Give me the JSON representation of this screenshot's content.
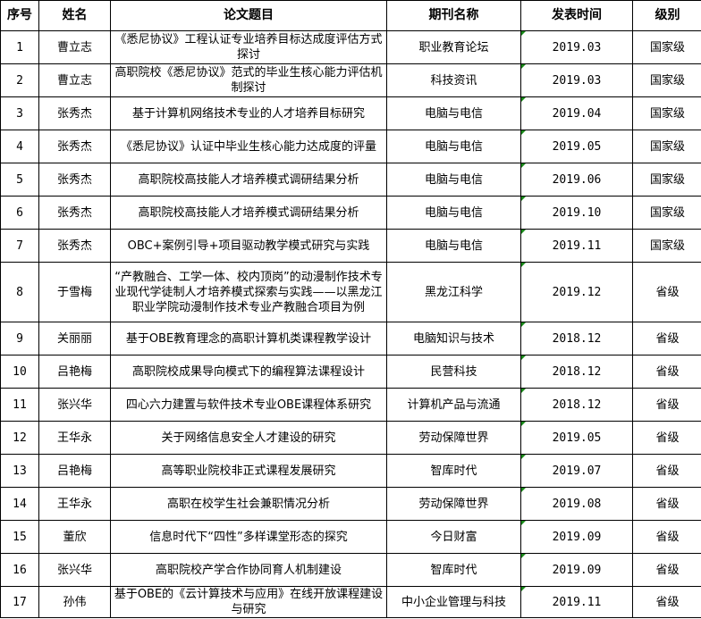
{
  "headers": [
    "序号",
    "姓名",
    "论文题目",
    "期刊名称",
    "发表时间",
    "级别"
  ],
  "rows": [
    {
      "no": "1",
      "name": "曹立志",
      "title": "《悉尼协议》工程认证专业培养目标达成度评估方式探讨",
      "journal": "职业教育论坛",
      "date": "2019.03",
      "level": "国家级"
    },
    {
      "no": "2",
      "name": "曹立志",
      "title": "高职院校《悉尼协议》范式的毕业生核心能力评估机制探讨",
      "journal": "科技资讯",
      "date": "2019.03",
      "level": "国家级"
    },
    {
      "no": "3",
      "name": "张秀杰",
      "title": "基于计算机网络技术专业的人才培养目标研究",
      "journal": "电脑与电信",
      "date": "2019.04",
      "level": "国家级"
    },
    {
      "no": "4",
      "name": "张秀杰",
      "title": "《悉尼协议》认证中毕业生核心能力达成度的评量",
      "journal": "电脑与电信",
      "date": "2019.05",
      "level": "国家级"
    },
    {
      "no": "5",
      "name": "张秀杰",
      "title": "高职院校高技能人才培养模式调研结果分析",
      "journal": "电脑与电信",
      "date": "2019.06",
      "level": "国家级"
    },
    {
      "no": "6",
      "name": "张秀杰",
      "title": "高职院校高技能人才培养模式调研结果分析",
      "journal": "电脑与电信",
      "date": "2019.10",
      "level": "国家级"
    },
    {
      "no": "7",
      "name": "张秀杰",
      "title": "OBC+案例引导+项目驱动教学模式研究与实践",
      "journal": "电脑与电信",
      "date": "2019.11",
      "level": "国家级"
    },
    {
      "no": "8",
      "name": "于雪梅",
      "title": "“产教融合、工学一体、校内顶岗”的动漫制作技术专业现代学徒制人才培养模式探索与实践——以黑龙江职业学院动漫制作技术专业产教融合项目为例",
      "journal": "黑龙江科学",
      "date": "2019.12",
      "level": "省级"
    },
    {
      "no": "9",
      "name": "关丽丽",
      "title": "基于OBE教育理念的高职计算机类课程教学设计",
      "journal": "电脑知识与技术",
      "date": "2018.12",
      "level": "省级"
    },
    {
      "no": "10",
      "name": "吕艳梅",
      "title": "高职院校成果导向模式下的编程算法课程设计",
      "journal": "民营科技",
      "date": "2018.12",
      "level": "省级"
    },
    {
      "no": "11",
      "name": "张兴华",
      "title": "四心六力建置与软件技术专业OBE课程体系研究",
      "journal": "计算机产品与流通",
      "date": "2018.12",
      "level": "省级"
    },
    {
      "no": "12",
      "name": "王华永",
      "title": "关于网络信息安全人才建设的研究",
      "journal": "劳动保障世界",
      "date": "2019.05",
      "level": "省级"
    },
    {
      "no": "13",
      "name": "吕艳梅",
      "title": "高等职业院校非正式课程发展研究",
      "journal": "智库时代",
      "date": "2019.07",
      "level": "省级"
    },
    {
      "no": "14",
      "name": "王华永",
      "title": "高职在校学生社会兼职情况分析",
      "journal": "劳动保障世界",
      "date": "2019.08",
      "level": "省级"
    },
    {
      "no": "15",
      "name": "董欣",
      "title": "信息时代下“四性”多样课堂形态的探究",
      "journal": "今日财富",
      "date": "2019.09",
      "level": "省级"
    },
    {
      "no": "16",
      "name": "张兴华",
      "title": "高职院校产学合作协同育人机制建设",
      "journal": "智库时代",
      "date": "2019.09",
      "level": "省级"
    },
    {
      "no": "17",
      "name": "孙伟",
      "title": "基于OBE的《云计算技术与应用》在线开放课程建设与研究",
      "journal": "中小企业管理与科技",
      "date": "2019.11",
      "level": "省级"
    }
  ],
  "colors": {
    "border": "#000000",
    "error_indicator": "#1a8a1a"
  }
}
